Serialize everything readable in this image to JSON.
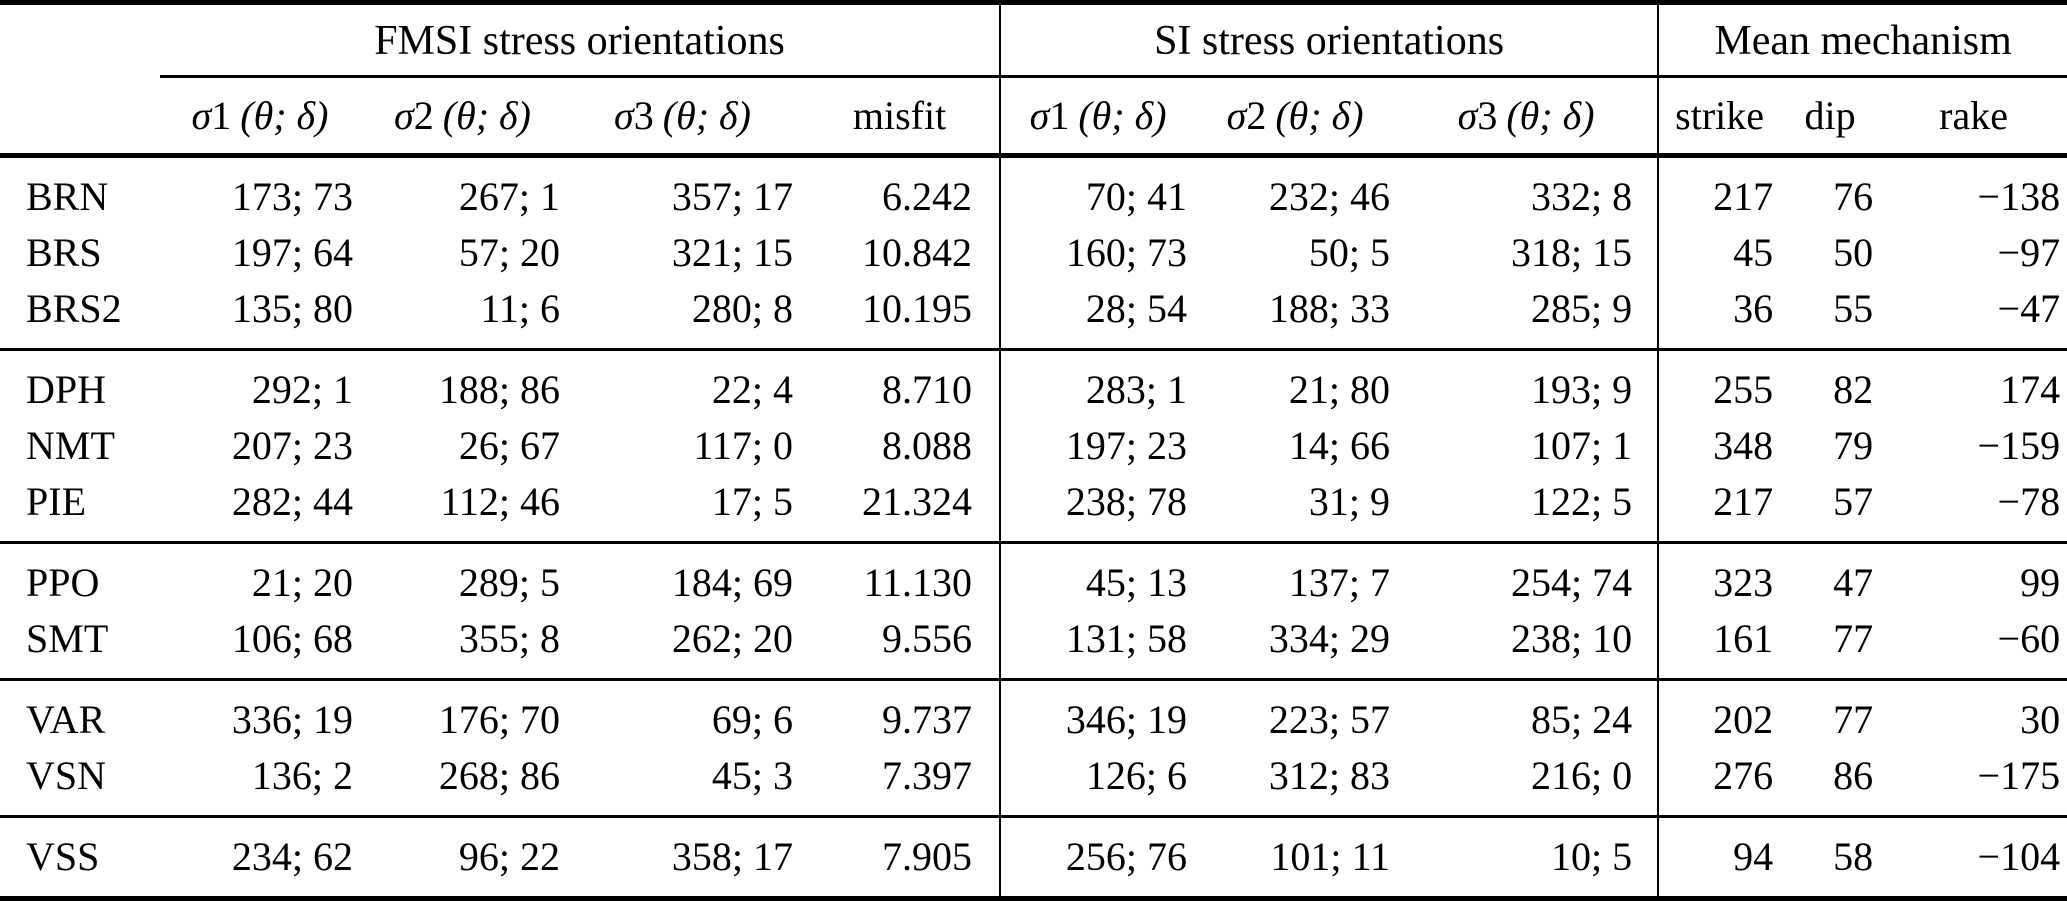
{
  "table": {
    "group_headers": [
      "FMSI stress orientations",
      "SI stress orientations",
      "Mean mechanism"
    ],
    "col_headers": {
      "fmsi": [
        {
          "sym": "σ",
          "num": "1",
          "args": "(θ; δ)"
        },
        {
          "sym": "σ",
          "num": "2",
          "args": "(θ; δ)"
        },
        {
          "sym": "σ",
          "num": "3",
          "args": "(θ; δ)"
        }
      ],
      "misfit": "misfit",
      "si": [
        {
          "sym": "σ",
          "num": "1",
          "args": "(θ; δ)"
        },
        {
          "sym": "σ",
          "num": "2",
          "args": "(θ; δ)"
        },
        {
          "sym": "σ",
          "num": "3",
          "args": "(θ; δ)"
        }
      ],
      "mean": [
        "strike",
        "dip",
        "rake"
      ]
    },
    "groups": [
      [
        [
          "BRN",
          "173; 73",
          "267; 1",
          "357; 17",
          "6.242",
          "70; 41",
          "232; 46",
          "332; 8",
          "217",
          "76",
          "−138"
        ],
        [
          "BRS",
          "197; 64",
          "57; 20",
          "321; 15",
          "10.842",
          "160; 73",
          "50; 5",
          "318; 15",
          "45",
          "50",
          "−97"
        ],
        [
          "BRS2",
          "135; 80",
          "11; 6",
          "280; 8",
          "10.195",
          "28; 54",
          "188; 33",
          "285; 9",
          "36",
          "55",
          "−47"
        ]
      ],
      [
        [
          "DPH",
          "292; 1",
          "188; 86",
          "22; 4",
          "8.710",
          "283; 1",
          "21; 80",
          "193; 9",
          "255",
          "82",
          "174"
        ],
        [
          "NMT",
          "207; 23",
          "26; 67",
          "117; 0",
          "8.088",
          "197; 23",
          "14; 66",
          "107; 1",
          "348",
          "79",
          "−159"
        ],
        [
          "PIE",
          "282; 44",
          "112; 46",
          "17; 5",
          "21.324",
          "238; 78",
          "31; 9",
          "122; 5",
          "217",
          "57",
          "−78"
        ]
      ],
      [
        [
          "PPO",
          "21; 20",
          "289; 5",
          "184; 69",
          "11.130",
          "45; 13",
          "137; 7",
          "254; 74",
          "323",
          "47",
          "99"
        ],
        [
          "SMT",
          "106; 68",
          "355; 8",
          "262; 20",
          "9.556",
          "131; 58",
          "334; 29",
          "238; 10",
          "161",
          "77",
          "−60"
        ]
      ],
      [
        [
          "VAR",
          "336; 19",
          "176; 70",
          "69; 6",
          "9.737",
          "346; 19",
          "223; 57",
          "85; 24",
          "202",
          "77",
          "30"
        ],
        [
          "VSN",
          "136; 2",
          "268; 86",
          "45; 3",
          "7.397",
          "126; 6",
          "312; 83",
          "216; 0",
          "276",
          "86",
          "−175"
        ]
      ],
      [
        [
          "VSS",
          "234; 62",
          "96; 22",
          "358; 17",
          "7.905",
          "256; 76",
          "101; 11",
          "10; 5",
          "94",
          "58",
          "−104"
        ]
      ]
    ]
  }
}
